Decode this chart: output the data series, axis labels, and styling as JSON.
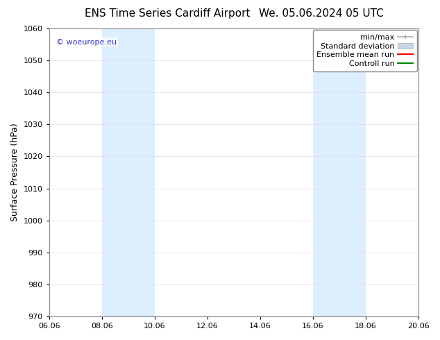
{
  "title_left": "ENS Time Series Cardiff Airport",
  "title_right": "We. 05.06.2024 05 UTC",
  "ylabel": "Surface Pressure (hPa)",
  "ylim": [
    970,
    1060
  ],
  "yticks": [
    970,
    980,
    990,
    1000,
    1010,
    1020,
    1030,
    1040,
    1050,
    1060
  ],
  "xticks_labels": [
    "06.06",
    "08.06",
    "10.06",
    "12.06",
    "14.06",
    "16.06",
    "18.06",
    "20.06"
  ],
  "xticks_values": [
    0,
    2,
    4,
    6,
    8,
    10,
    12,
    14
  ],
  "background_color": "#ffffff",
  "plot_bg_color": "#ffffff",
  "watermark_text": "© woeurope.eu",
  "watermark_color": "#3333cc",
  "shaded_regions": [
    {
      "x_start": 2,
      "x_end": 4,
      "color": "#ddeeff"
    },
    {
      "x_start": 10,
      "x_end": 12,
      "color": "#ddeeff"
    }
  ],
  "legend_items": [
    {
      "label": "min/max",
      "color": "#aaaaaa",
      "type": "errorbar"
    },
    {
      "label": "Standard deviation",
      "color": "#c8d8e8",
      "type": "patch"
    },
    {
      "label": "Ensemble mean run",
      "color": "#ff0000",
      "type": "line"
    },
    {
      "label": "Controll run",
      "color": "#008000",
      "type": "line"
    }
  ],
  "title_fontsize": 11,
  "tick_fontsize": 8,
  "ylabel_fontsize": 9,
  "watermark_fontsize": 8,
  "legend_fontsize": 8
}
